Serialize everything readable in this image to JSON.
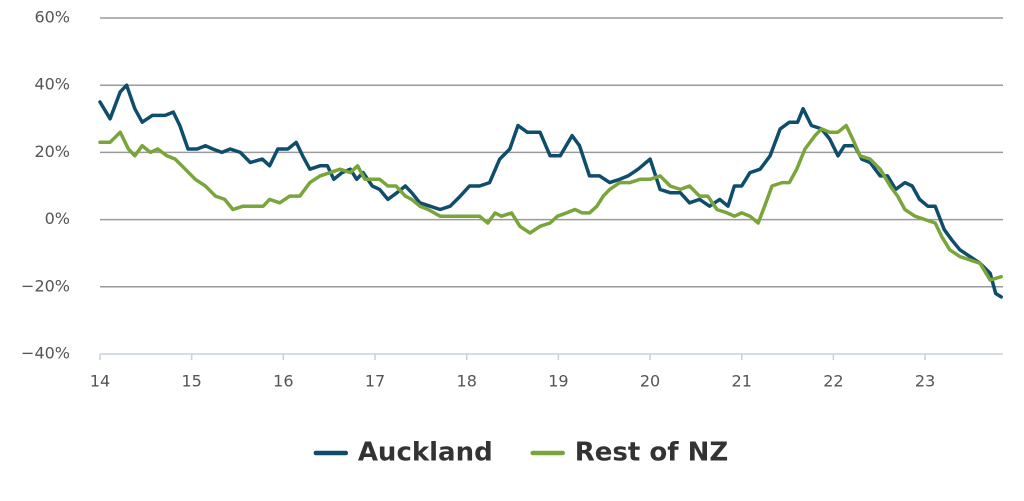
{
  "chart_data": {
    "type": "line",
    "xlim": [
      14,
      23.85
    ],
    "xticks": [
      14,
      15,
      16,
      17,
      18,
      19,
      20,
      21,
      22,
      23
    ],
    "ylim": [
      -40,
      60
    ],
    "yticks": [
      {
        "value": -40,
        "label": "−40%"
      },
      {
        "value": -20,
        "label": "−20%"
      },
      {
        "value": 0,
        "label": "0%"
      },
      {
        "value": 20,
        "label": "20%"
      },
      {
        "value": 40,
        "label": "40%"
      },
      {
        "value": 60,
        "label": "60%"
      }
    ],
    "grid": true,
    "legend": "bottom",
    "series": [
      {
        "name": "Auckland",
        "color": "#0e4d6b",
        "x": [
          14.0,
          14.11,
          14.22,
          14.29,
          14.38,
          14.46,
          14.57,
          14.71,
          14.8,
          14.87,
          14.96,
          15.06,
          15.15,
          15.23,
          15.33,
          15.42,
          15.53,
          15.64,
          15.77,
          15.85,
          15.94,
          16.05,
          16.14,
          16.21,
          16.29,
          16.4,
          16.48,
          16.55,
          16.64,
          16.73,
          16.8,
          16.87,
          16.97,
          17.05,
          17.14,
          17.24,
          17.33,
          17.4,
          17.49,
          17.6,
          17.71,
          17.82,
          17.93,
          18.03,
          18.14,
          18.25,
          18.36,
          18.47,
          18.56,
          18.66,
          18.8,
          18.91,
          19.02,
          19.15,
          19.23,
          19.34,
          19.45,
          19.56,
          19.67,
          19.76,
          19.87,
          20.0,
          20.11,
          20.22,
          20.33,
          20.43,
          20.54,
          20.65,
          20.76,
          20.85,
          20.92,
          21.0,
          21.09,
          21.2,
          21.31,
          21.42,
          21.52,
          21.61,
          21.67,
          21.76,
          21.87,
          21.96,
          22.05,
          22.12,
          22.23,
          22.31,
          22.4,
          22.51,
          22.59,
          22.68,
          22.78,
          22.86,
          22.94,
          23.03,
          23.11,
          23.21,
          23.29,
          23.38,
          23.49,
          23.6,
          23.71,
          23.77,
          23.83
        ],
        "values": [
          35,
          30,
          38,
          40,
          33,
          29,
          31,
          31,
          32,
          28,
          21,
          21,
          22,
          21,
          20,
          21,
          20,
          17,
          18,
          16,
          21,
          21,
          23,
          19,
          15,
          16,
          16,
          12,
          14,
          15,
          12,
          14,
          10,
          9,
          6,
          8,
          10,
          8,
          5,
          4,
          3,
          4,
          7,
          10,
          10,
          11,
          18,
          21,
          28,
          26,
          26,
          19,
          19,
          25,
          22,
          13,
          13,
          11,
          12,
          13,
          15,
          18,
          9,
          8,
          8,
          5,
          6,
          4,
          6,
          4,
          10,
          10,
          14,
          15,
          19,
          27,
          29,
          29,
          33,
          28,
          27,
          24,
          19,
          22,
          22,
          18,
          17,
          13,
          13,
          9,
          11,
          10,
          6,
          4,
          4,
          -3,
          -6,
          -9,
          -11,
          -13,
          -16,
          -22,
          -23
        ]
      },
      {
        "name": "Rest of NZ",
        "color": "#79a53b",
        "x": [
          14.0,
          14.11,
          14.22,
          14.31,
          14.38,
          14.46,
          14.55,
          14.63,
          14.73,
          14.82,
          14.93,
          15.04,
          15.15,
          15.26,
          15.36,
          15.45,
          15.56,
          15.66,
          15.78,
          15.85,
          15.96,
          16.07,
          16.18,
          16.29,
          16.4,
          16.51,
          16.62,
          16.73,
          16.81,
          16.89,
          16.97,
          17.05,
          17.14,
          17.23,
          17.33,
          17.4,
          17.49,
          17.58,
          17.71,
          17.82,
          17.93,
          18.03,
          18.14,
          18.23,
          18.31,
          18.38,
          18.49,
          18.58,
          18.69,
          18.8,
          18.91,
          18.99,
          19.09,
          19.18,
          19.26,
          19.34,
          19.42,
          19.49,
          19.56,
          19.67,
          19.78,
          19.89,
          20.0,
          20.11,
          20.22,
          20.33,
          20.43,
          20.54,
          20.63,
          20.73,
          20.84,
          20.92,
          21.0,
          21.09,
          21.18,
          21.25,
          21.33,
          21.44,
          21.52,
          21.6,
          21.69,
          21.8,
          21.87,
          21.96,
          22.05,
          22.14,
          22.21,
          22.29,
          22.4,
          22.51,
          22.62,
          22.7,
          22.78,
          22.89,
          23.0,
          23.11,
          23.18,
          23.27,
          23.38,
          23.49,
          23.6,
          23.71,
          23.83
        ],
        "values": [
          23,
          23,
          26,
          21,
          19,
          22,
          20,
          21,
          19,
          18,
          15,
          12,
          10,
          7,
          6,
          3,
          4,
          4,
          4,
          6,
          5,
          7,
          7,
          11,
          13,
          14,
          15,
          14,
          16,
          12,
          12,
          12,
          10,
          10,
          7,
          6,
          4,
          3,
          1,
          1,
          1,
          1,
          1,
          -1,
          2,
          1,
          2,
          -2,
          -4,
          -2,
          -1,
          1,
          2,
          3,
          2,
          2,
          4,
          7,
          9,
          11,
          11,
          12,
          12,
          13,
          10,
          9,
          10,
          7,
          7,
          3,
          2,
          1,
          2,
          1,
          -1,
          4,
          10,
          11,
          11,
          15,
          21,
          25,
          27,
          26,
          26,
          28,
          24,
          19,
          18,
          15,
          10,
          7,
          3,
          1,
          0,
          -1,
          -5,
          -9,
          -11,
          -12,
          -13,
          -18,
          -17
        ]
      }
    ]
  }
}
